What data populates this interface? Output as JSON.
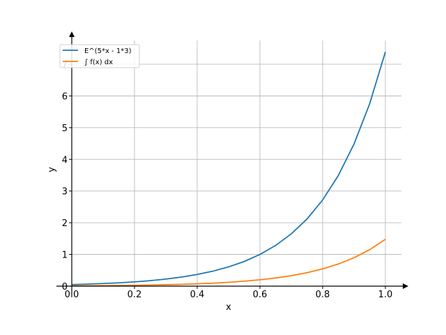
{
  "chart_data": {
    "type": "line",
    "title": "",
    "xlabel": "x",
    "ylabel": "y",
    "xlim": [
      0,
      1
    ],
    "ylim": [
      0,
      7.6
    ],
    "grid": true,
    "legend_placement": "top-left",
    "xticks": [
      0.0,
      0.2,
      0.4,
      0.6,
      0.8,
      1.0
    ],
    "xtick_labels": [
      "0.0",
      "0.2",
      "0.4",
      "0.6",
      "0.8",
      "1.0"
    ],
    "yticks": [
      0,
      1,
      2,
      3,
      4,
      5,
      6,
      7
    ],
    "ytick_labels": [
      "0",
      "1",
      "2",
      "3",
      "4",
      "5",
      "6",
      "7"
    ],
    "series": [
      {
        "name": "E^(5*x - 1*3)",
        "color": "#1f77b4",
        "x": [
          0.0,
          0.05,
          0.1,
          0.15,
          0.2,
          0.25,
          0.3,
          0.35,
          0.4,
          0.45,
          0.5,
          0.55,
          0.6,
          0.65,
          0.7,
          0.75,
          0.8,
          0.85,
          0.9,
          0.95,
          1.0
        ],
        "y": [
          0.05,
          0.064,
          0.082,
          0.105,
          0.135,
          0.174,
          0.223,
          0.287,
          0.368,
          0.472,
          0.607,
          0.779,
          1.0,
          1.284,
          1.649,
          2.117,
          2.718,
          3.49,
          4.482,
          5.755,
          7.389
        ]
      },
      {
        "name": "∫ f(x) dx",
        "color": "#ff7f0e",
        "x": [
          0.0,
          0.05,
          0.1,
          0.15,
          0.2,
          0.25,
          0.3,
          0.35,
          0.4,
          0.45,
          0.5,
          0.55,
          0.6,
          0.65,
          0.7,
          0.75,
          0.8,
          0.85,
          0.9,
          0.95,
          1.0
        ],
        "y": [
          0.01,
          0.013,
          0.016,
          0.021,
          0.027,
          0.035,
          0.045,
          0.057,
          0.074,
          0.094,
          0.121,
          0.156,
          0.2,
          0.257,
          0.33,
          0.423,
          0.544,
          0.698,
          0.896,
          1.151,
          1.478
        ]
      }
    ]
  }
}
